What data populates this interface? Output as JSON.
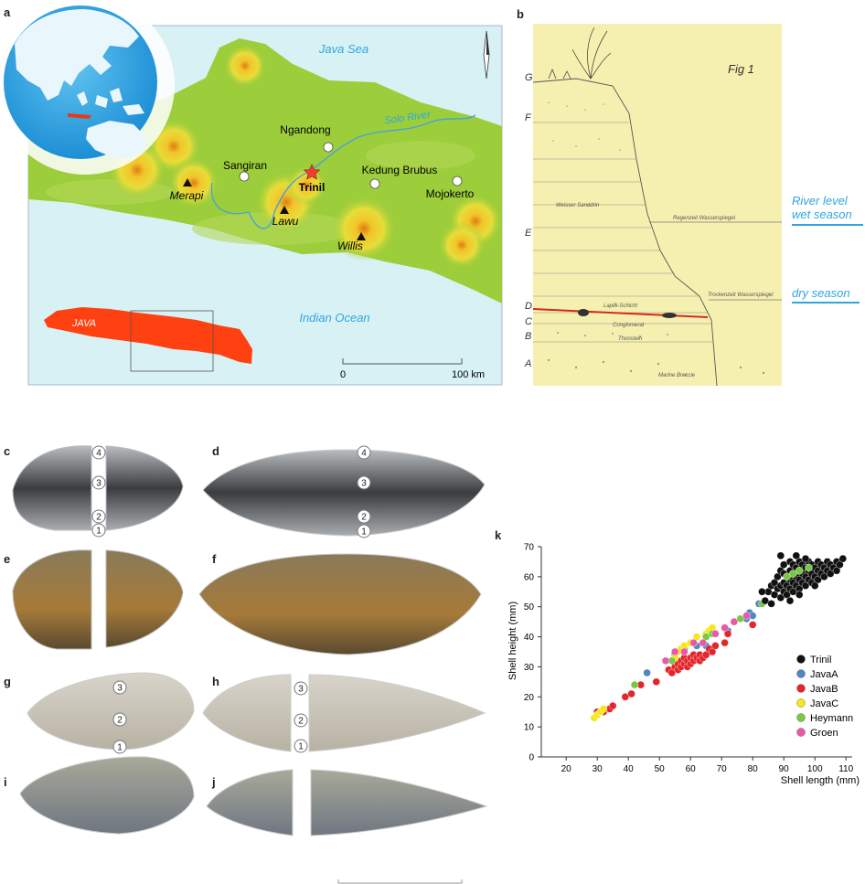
{
  "panels": {
    "a": "a",
    "b": "b",
    "c": "c",
    "d": "d",
    "e": "e",
    "f": "f",
    "g": "g",
    "h": "h",
    "i": "i",
    "j": "j",
    "k": "k"
  },
  "map": {
    "sea_north": "Java Sea",
    "sea_south": "Indian Ocean",
    "river": "Solo River",
    "island": "JAVA",
    "volcanoes": [
      "Merapi",
      "Lawu",
      "Willis"
    ],
    "sites": [
      "Sangiran",
      "Ngandong",
      "Kedung Brubus",
      "Mojokerto"
    ],
    "highlight_site": "Trinil",
    "scale_start": "0",
    "scale_end": "100 km",
    "colors": {
      "sea": "#d8f1f5",
      "land": "#9ccd3a",
      "java_inset": "#ff4010",
      "star": "#ef3e36"
    }
  },
  "section": {
    "fig_title": "Fig 1",
    "layers": [
      "G",
      "F",
      "E",
      "D",
      "C",
      "B",
      "A"
    ],
    "annotations": [
      "Weisser Sanddrin",
      "Regenzeit Wasserspiegel",
      "Lapilli-Schicht",
      "Trockenzeit Wasserspiegel",
      "Conglomerat",
      "Thonstein",
      "Marine Breccie"
    ],
    "wet_season_label_1": "River level",
    "wet_season_label_2": "wet season",
    "dry_season_label": "dry season"
  },
  "shells": {
    "c_markers": [
      "4",
      "3",
      "2",
      "1"
    ],
    "d_markers": [
      "4",
      "3",
      "2",
      "1"
    ],
    "g_markers": [
      "3",
      "2",
      "1"
    ],
    "h_markers": [
      "3",
      "2",
      "1"
    ]
  },
  "chart_data": {
    "type": "scatter",
    "xlabel": "Shell length (mm)",
    "ylabel": "Shell height  (mm)",
    "xlim": [
      12,
      112
    ],
    "ylim": [
      0,
      70
    ],
    "xticks": [
      20,
      30,
      40,
      50,
      60,
      70,
      80,
      90,
      100,
      110
    ],
    "yticks": [
      0,
      10,
      20,
      30,
      40,
      50,
      60,
      70
    ],
    "legend_position": "right",
    "series": [
      {
        "name": "Trinil",
        "color": "#111111",
        "points": [
          [
            84,
            52
          ],
          [
            85,
            55
          ],
          [
            86,
            57
          ],
          [
            87,
            54
          ],
          [
            87,
            58
          ],
          [
            88,
            56
          ],
          [
            88,
            60
          ],
          [
            89,
            53
          ],
          [
            89,
            57
          ],
          [
            89,
            62
          ],
          [
            90,
            55
          ],
          [
            90,
            58
          ],
          [
            90,
            61
          ],
          [
            90,
            64
          ],
          [
            91,
            54
          ],
          [
            91,
            57
          ],
          [
            91,
            60
          ],
          [
            92,
            56
          ],
          [
            92,
            59
          ],
          [
            92,
            62
          ],
          [
            92,
            65
          ],
          [
            93,
            55
          ],
          [
            93,
            58
          ],
          [
            93,
            61
          ],
          [
            93,
            64
          ],
          [
            94,
            57
          ],
          [
            94,
            60
          ],
          [
            94,
            63
          ],
          [
            95,
            56
          ],
          [
            95,
            59
          ],
          [
            95,
            62
          ],
          [
            95,
            65
          ],
          [
            96,
            58
          ],
          [
            96,
            61
          ],
          [
            96,
            64
          ],
          [
            97,
            57
          ],
          [
            97,
            60
          ],
          [
            97,
            63
          ],
          [
            98,
            59
          ],
          [
            98,
            62
          ],
          [
            98,
            65
          ],
          [
            99,
            58
          ],
          [
            99,
            61
          ],
          [
            99,
            64
          ],
          [
            100,
            60
          ],
          [
            100,
            63
          ],
          [
            101,
            59
          ],
          [
            101,
            62
          ],
          [
            101,
            65
          ],
          [
            102,
            61
          ],
          [
            102,
            64
          ],
          [
            103,
            60
          ],
          [
            103,
            63
          ],
          [
            104,
            62
          ],
          [
            104,
            65
          ],
          [
            105,
            61
          ],
          [
            105,
            64
          ],
          [
            106,
            63
          ],
          [
            107,
            62
          ],
          [
            107,
            65
          ],
          [
            108,
            64
          ],
          [
            109,
            66
          ],
          [
            89,
            67
          ],
          [
            86,
            51
          ],
          [
            83,
            55
          ],
          [
            95,
            54
          ],
          [
            100,
            57
          ],
          [
            92,
            52
          ],
          [
            97,
            66
          ],
          [
            94,
            67
          ]
        ]
      },
      {
        "name": "JavaA",
        "color": "#4f86c6",
        "points": [
          [
            46,
            28
          ],
          [
            55,
            34
          ],
          [
            58,
            36
          ],
          [
            62,
            37
          ],
          [
            65,
            37
          ],
          [
            72,
            42
          ],
          [
            78,
            46
          ],
          [
            79,
            48
          ],
          [
            80,
            47
          ],
          [
            82,
            51
          ]
        ]
      },
      {
        "name": "JavaB",
        "color": "#e3262b",
        "points": [
          [
            30,
            15
          ],
          [
            32,
            15
          ],
          [
            34,
            16
          ],
          [
            35,
            17
          ],
          [
            39,
            20
          ],
          [
            41,
            21
          ],
          [
            44,
            24
          ],
          [
            49,
            25
          ],
          [
            53,
            29
          ],
          [
            54,
            28
          ],
          [
            55,
            30
          ],
          [
            56,
            29
          ],
          [
            56,
            31
          ],
          [
            57,
            30
          ],
          [
            57,
            32
          ],
          [
            58,
            31
          ],
          [
            58,
            33
          ],
          [
            59,
            30
          ],
          [
            59,
            32
          ],
          [
            60,
            31
          ],
          [
            60,
            33
          ],
          [
            61,
            32
          ],
          [
            61,
            34
          ],
          [
            62,
            33
          ],
          [
            63,
            32
          ],
          [
            63,
            34
          ],
          [
            64,
            33
          ],
          [
            65,
            34
          ],
          [
            66,
            36
          ],
          [
            67,
            35
          ],
          [
            68,
            37
          ],
          [
            71,
            38
          ],
          [
            72,
            41
          ],
          [
            80,
            44
          ]
        ]
      },
      {
        "name": "JavaC",
        "color": "#f6e61a",
        "points": [
          [
            29,
            13
          ],
          [
            30,
            14
          ],
          [
            31,
            15
          ],
          [
            32,
            16
          ],
          [
            55,
            33
          ],
          [
            56,
            35
          ],
          [
            57,
            36
          ],
          [
            58,
            37
          ],
          [
            60,
            38
          ],
          [
            62,
            40
          ],
          [
            65,
            41
          ],
          [
            66,
            42
          ],
          [
            67,
            43
          ]
        ]
      },
      {
        "name": "Heymann",
        "color": "#79c843",
        "points": [
          [
            42,
            24
          ],
          [
            54,
            32
          ],
          [
            61,
            38
          ],
          [
            65,
            40
          ],
          [
            67,
            41
          ],
          [
            76,
            46
          ],
          [
            83,
            51
          ],
          [
            91,
            60
          ],
          [
            93,
            61
          ],
          [
            95,
            62
          ],
          [
            98,
            63
          ]
        ]
      },
      {
        "name": "Groen",
        "color": "#e85aa8",
        "points": [
          [
            52,
            32
          ],
          [
            55,
            35
          ],
          [
            58,
            35
          ],
          [
            61,
            38
          ],
          [
            64,
            38
          ],
          [
            68,
            41
          ],
          [
            71,
            43
          ],
          [
            74,
            45
          ],
          [
            78,
            47
          ]
        ]
      }
    ]
  }
}
